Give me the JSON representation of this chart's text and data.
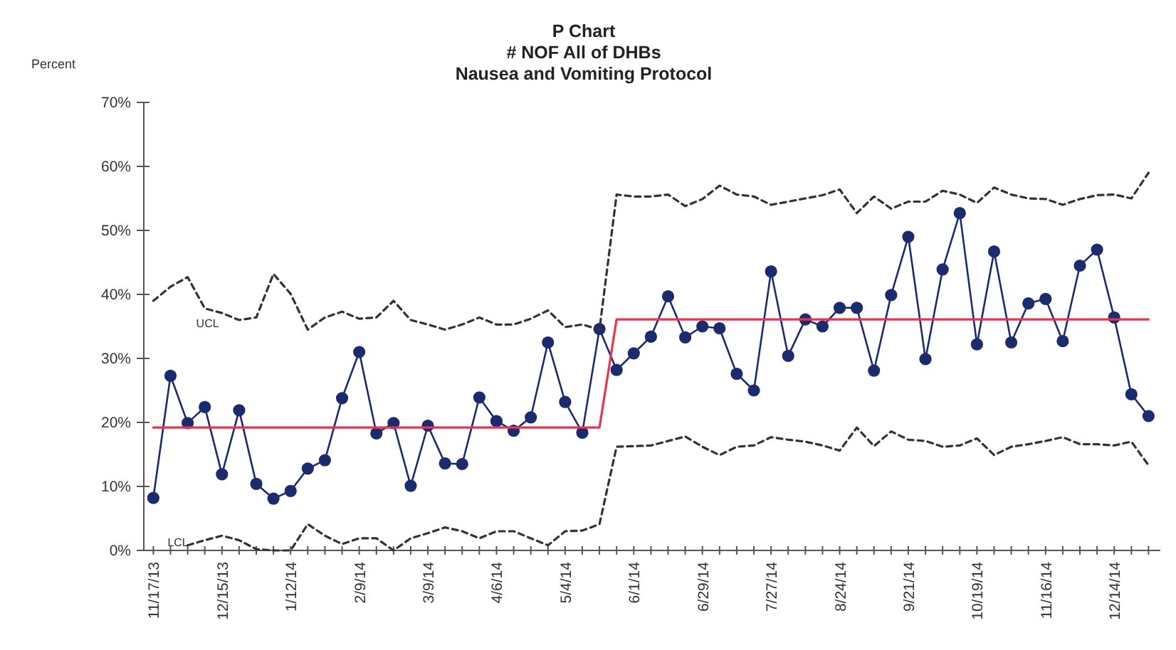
{
  "chart_data": {
    "type": "line",
    "title": "P Chart\n# NOF All of DHBs\nNausea and Vomiting Protocol",
    "ylabel": "Percent",
    "categories": [
      "11/17/13",
      null,
      null,
      null,
      "12/15/13",
      null,
      null,
      null,
      "1/12/14",
      null,
      null,
      null,
      "2/9/14",
      null,
      null,
      null,
      "3/9/14",
      null,
      null,
      null,
      "4/6/14",
      null,
      null,
      null,
      "5/4/14",
      null,
      null,
      null,
      "6/1/14",
      null,
      null,
      null,
      "6/29/14",
      null,
      null,
      null,
      "7/27/14",
      null,
      null,
      null,
      "8/24/14",
      null,
      null,
      null,
      "9/21/14",
      null,
      null,
      null,
      "10/19/14",
      null,
      null,
      null,
      "11/16/14",
      null,
      null,
      null,
      "12/14/14",
      null,
      null
    ],
    "ylim": [
      0,
      70
    ],
    "yticks": [
      {
        "value": 0,
        "label": "0%"
      },
      {
        "value": 10,
        "label": "10%"
      },
      {
        "value": 20,
        "label": "20%"
      },
      {
        "value": 30,
        "label": "30%"
      },
      {
        "value": 40,
        "label": "40%"
      },
      {
        "value": 50,
        "label": "50%"
      },
      {
        "value": 60,
        "label": "60%"
      },
      {
        "value": 70,
        "label": "70%"
      }
    ],
    "grid": false,
    "series": [
      {
        "color": "#1c2a6e",
        "marker": "circle",
        "line_style": "solid",
        "values": [
          8.2,
          27.3,
          19.9,
          22.4,
          11.9,
          21.9,
          10.4,
          8.1,
          9.3,
          12.8,
          14.1,
          23.8,
          31.0,
          18.3,
          19.9,
          10.1,
          19.5,
          13.6,
          13.5,
          23.9,
          20.2,
          18.7,
          20.8,
          32.5,
          23.2,
          18.4,
          34.6,
          28.2,
          30.8,
          33.4,
          39.7,
          33.3,
          35.0,
          34.7,
          27.6,
          25.0,
          43.6,
          30.4,
          36.1,
          35.0,
          37.9,
          37.9,
          28.1,
          39.9,
          49.0,
          29.9,
          43.9,
          52.7,
          32.2,
          46.7,
          32.5,
          38.6,
          39.3,
          32.7,
          44.5,
          47.0,
          36.4,
          24.4,
          21.0
        ]
      },
      {
        "color": "#e8344e",
        "marker": "none",
        "line_style": "solid",
        "values": [
          19.2,
          19.2,
          19.2,
          19.2,
          19.2,
          19.2,
          19.2,
          19.2,
          19.2,
          19.2,
          19.2,
          19.2,
          19.2,
          19.2,
          19.2,
          19.2,
          19.2,
          19.2,
          19.2,
          19.2,
          19.2,
          19.2,
          19.2,
          19.2,
          19.2,
          19.2,
          19.2,
          36.1,
          36.1,
          36.1,
          36.1,
          36.1,
          36.1,
          36.1,
          36.1,
          36.1,
          36.1,
          36.1,
          36.1,
          36.1,
          36.1,
          36.1,
          36.1,
          36.1,
          36.1,
          36.1,
          36.1,
          36.1,
          36.1,
          36.1,
          36.1,
          36.1,
          36.1,
          36.1,
          36.1,
          36.1,
          36.1,
          36.1,
          36.1
        ]
      },
      {
        "name": "UCL",
        "color": "#333333",
        "marker": "none",
        "line_style": "dashed",
        "values": [
          39.0,
          41.2,
          42.7,
          37.8,
          37.1,
          36.0,
          36.4,
          43.2,
          40.1,
          34.5,
          36.4,
          37.3,
          36.2,
          36.4,
          39.0,
          36.0,
          35.3,
          34.5,
          35.3,
          36.4,
          35.3,
          35.3,
          36.2,
          37.5,
          34.9,
          35.3,
          34.5,
          55.6,
          55.3,
          55.3,
          55.6,
          53.8,
          54.9,
          57.0,
          55.6,
          55.3,
          54.0,
          54.5,
          55.0,
          55.5,
          56.4,
          52.7,
          55.3,
          53.4,
          54.5,
          54.5,
          56.2,
          55.6,
          54.3,
          56.7,
          55.6,
          55.0,
          54.9,
          54.0,
          54.9,
          55.5,
          55.6,
          55.0,
          59.0
        ]
      },
      {
        "name": "LCL",
        "color": "#333333",
        "marker": "none",
        "line_style": "dashed",
        "values": [
          null,
          null,
          0.8,
          1.6,
          2.3,
          1.6,
          0.2,
          0,
          0,
          4.1,
          2.3,
          1.0,
          1.9,
          1.9,
          0,
          1.9,
          2.7,
          3.6,
          3.0,
          1.9,
          3.0,
          3.0,
          1.9,
          0.8,
          3.0,
          3.1,
          4.1,
          16.2,
          16.3,
          16.4,
          17.1,
          17.8,
          16.2,
          14.9,
          16.2,
          16.4,
          17.7,
          17.3,
          17.0,
          16.4,
          15.6,
          19.2,
          16.3,
          18.6,
          17.3,
          17.1,
          16.2,
          16.4,
          17.5,
          14.9,
          16.2,
          16.6,
          17.1,
          17.7,
          16.6,
          16.6,
          16.4,
          17.0,
          13.3
        ]
      }
    ]
  }
}
